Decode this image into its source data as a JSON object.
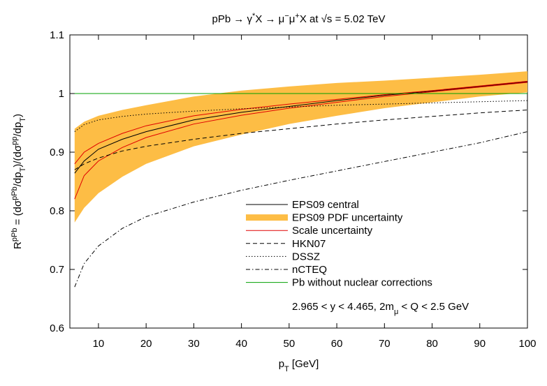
{
  "chart_data": {
    "type": "line",
    "title": [
      "pPb → γ",
      {
        "sup": "*"
      },
      "X → μ",
      {
        "sup": "−"
      },
      "μ",
      {
        "sup": "+"
      },
      "X at √s = 5.02 TeV"
    ],
    "x_label": [
      "p",
      {
        "sub": "T"
      },
      " [GeV]"
    ],
    "y_label": [
      "R",
      {
        "sup": "pPb"
      },
      " = (dσ",
      {
        "sup": "pPb"
      },
      "/dp",
      {
        "sub": "T"
      },
      ")/(dσ",
      {
        "sup": "pp"
      },
      "/dp",
      {
        "sub": "T"
      },
      ")"
    ],
    "annotation": [
      "2.965 < y < 4.465,   2m",
      {
        "sub": "μ"
      },
      " < Q < 2.5 GeV"
    ],
    "x": [
      5,
      7,
      10,
      15,
      20,
      30,
      40,
      50,
      60,
      70,
      80,
      90,
      100
    ],
    "xlim": [
      4,
      100
    ],
    "xticks": [
      10,
      20,
      30,
      40,
      50,
      60,
      70,
      80,
      90,
      100
    ],
    "ylim": [
      0.6,
      1.1
    ],
    "yticks": [
      0.6,
      0.7,
      0.8,
      0.9,
      1,
      1.1
    ],
    "series": [
      {
        "name": "EPS09 central",
        "color": "#000000",
        "linestyle": "solid",
        "values": [
          0.864,
          0.885,
          0.905,
          0.922,
          0.935,
          0.955,
          0.968,
          0.978,
          0.988,
          0.997,
          1.004,
          1.012,
          1.02
        ]
      },
      {
        "name": "EPS09 PDF uncertainty",
        "color": "#fdbd45",
        "fill": true,
        "upper": [
          0.94,
          0.952,
          0.962,
          0.972,
          0.98,
          0.995,
          1.005,
          1.012,
          1.018,
          1.022,
          1.027,
          1.032,
          1.038
        ],
        "lower": [
          0.78,
          0.805,
          0.83,
          0.858,
          0.88,
          0.91,
          0.93,
          0.948,
          0.962,
          0.975,
          0.985,
          0.995,
          1.002
        ]
      },
      {
        "name": "Scale uncertainty",
        "color": "#e00000",
        "linestyle": "solid",
        "upper": [
          0.88,
          0.9,
          0.915,
          0.932,
          0.945,
          0.962,
          0.973,
          0.982,
          0.99,
          0.998,
          1.005,
          1.013,
          1.021
        ],
        "lower": [
          0.82,
          0.86,
          0.885,
          0.908,
          0.925,
          0.948,
          0.963,
          0.975,
          0.985,
          0.995,
          1.003,
          1.011,
          1.019
        ]
      },
      {
        "name": "HKN07",
        "color": "#000000",
        "linestyle": "dashed",
        "values": [
          0.87,
          0.88,
          0.89,
          0.902,
          0.91,
          0.922,
          0.932,
          0.94,
          0.948,
          0.955,
          0.961,
          0.967,
          0.972
        ]
      },
      {
        "name": "DSSZ",
        "color": "#000000",
        "linestyle": "dotted",
        "values": [
          0.935,
          0.947,
          0.955,
          0.961,
          0.965,
          0.97,
          0.974,
          0.977,
          0.98,
          0.982,
          0.984,
          0.986,
          0.988
        ]
      },
      {
        "name": "nCTEQ",
        "color": "#000000",
        "linestyle": "dashdot",
        "values": [
          0.67,
          0.71,
          0.74,
          0.77,
          0.79,
          0.815,
          0.835,
          0.852,
          0.868,
          0.884,
          0.9,
          0.916,
          0.935
        ]
      },
      {
        "name": "Pb without nuclear corrections",
        "color": "#00a000",
        "linestyle": "solid",
        "values": [
          1,
          1,
          1,
          1,
          1,
          1,
          1,
          1,
          1,
          1,
          1,
          1,
          1
        ]
      }
    ]
  }
}
